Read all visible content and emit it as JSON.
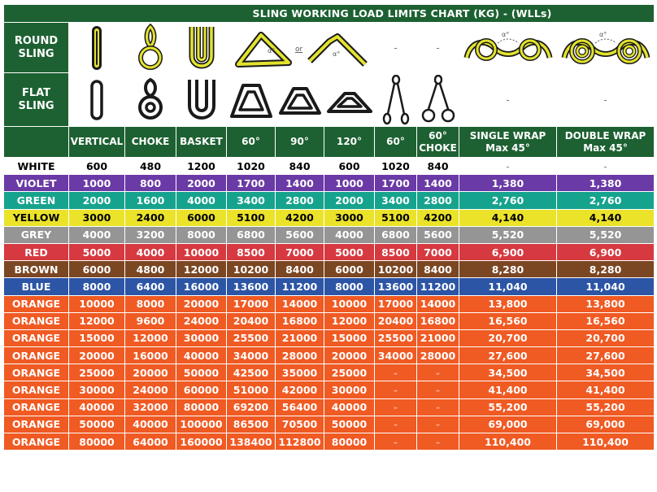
{
  "title": "SLING WORKING LOAD LIMITS CHART (KG) - (WLLs)",
  "round_label": "ROUND\nSLING",
  "flat_label": "FLAT\nSLING",
  "or_text": "or",
  "angle_symbol": "α°",
  "dash": "-",
  "columns": [
    "VERTICAL",
    "CHOKE",
    "BASKET",
    "60°",
    "90°",
    "120°",
    "60°",
    "60°\nCHOKE",
    "SINGLE WRAP\nMax 45°",
    "DOUBLE WRAP\nMax 45°"
  ],
  "colors": {
    "header_green": "#1d6132",
    "white": "#ffffff",
    "violet": "#6a3aa6",
    "green": "#16a38e",
    "yellow": "#ebe32a",
    "grey": "#959595",
    "red": "#d6393f",
    "brown": "#7b4723",
    "blue": "#2d55a5",
    "orange": "#f05a23",
    "sling_yellow": "#e3e32e"
  },
  "rows": [
    {
      "color": "WHITE",
      "bg": "#ffffff",
      "fg": "#000000",
      "values": [
        "600",
        "480",
        "1200",
        "1020",
        "840",
        "600",
        "1020",
        "840",
        "-",
        "-"
      ]
    },
    {
      "color": "VIOLET",
      "bg": "#6a3aa6",
      "fg": "#ffffff",
      "values": [
        "1000",
        "800",
        "2000",
        "1700",
        "1400",
        "1000",
        "1700",
        "1400",
        "1,380",
        "1,380"
      ]
    },
    {
      "color": "GREEN",
      "bg": "#16a38e",
      "fg": "#ffffff",
      "values": [
        "2000",
        "1600",
        "4000",
        "3400",
        "2800",
        "2000",
        "3400",
        "2800",
        "2,760",
        "2,760"
      ]
    },
    {
      "color": "YELLOW",
      "bg": "#ebe32a",
      "fg": "#000000",
      "values": [
        "3000",
        "2400",
        "6000",
        "5100",
        "4200",
        "3000",
        "5100",
        "4200",
        "4,140",
        "4,140"
      ]
    },
    {
      "color": "GREY",
      "bg": "#959595",
      "fg": "#ffffff",
      "values": [
        "4000",
        "3200",
        "8000",
        "6800",
        "5600",
        "4000",
        "6800",
        "5600",
        "5,520",
        "5,520"
      ]
    },
    {
      "color": "RED",
      "bg": "#d6393f",
      "fg": "#ffffff",
      "values": [
        "5000",
        "4000",
        "10000",
        "8500",
        "7000",
        "5000",
        "8500",
        "7000",
        "6,900",
        "6,900"
      ]
    },
    {
      "color": "BROWN",
      "bg": "#7b4723",
      "fg": "#ffffff",
      "values": [
        "6000",
        "4800",
        "12000",
        "10200",
        "8400",
        "6000",
        "10200",
        "8400",
        "8,280",
        "8,280"
      ]
    },
    {
      "color": "BLUE",
      "bg": "#2d55a5",
      "fg": "#ffffff",
      "values": [
        "8000",
        "6400",
        "16000",
        "13600",
        "11200",
        "8000",
        "13600",
        "11200",
        "11,040",
        "11,040"
      ]
    },
    {
      "color": "ORANGE",
      "bg": "#f05a23",
      "fg": "#ffffff",
      "values": [
        "10000",
        "8000",
        "20000",
        "17000",
        "14000",
        "10000",
        "17000",
        "14000",
        "13,800",
        "13,800"
      ]
    },
    {
      "color": "ORANGE",
      "bg": "#f05a23",
      "fg": "#ffffff",
      "values": [
        "12000",
        "9600",
        "24000",
        "20400",
        "16800",
        "12000",
        "20400",
        "16800",
        "16,560",
        "16,560"
      ]
    },
    {
      "color": "ORANGE",
      "bg": "#f05a23",
      "fg": "#ffffff",
      "values": [
        "15000",
        "12000",
        "30000",
        "25500",
        "21000",
        "15000",
        "25500",
        "21000",
        "20,700",
        "20,700"
      ]
    },
    {
      "color": "ORANGE",
      "bg": "#f05a23",
      "fg": "#ffffff",
      "values": [
        "20000",
        "16000",
        "40000",
        "34000",
        "28000",
        "20000",
        "34000",
        "28000",
        "27,600",
        "27,600"
      ]
    },
    {
      "color": "ORANGE",
      "bg": "#f05a23",
      "fg": "#ffffff",
      "values": [
        "25000",
        "20000",
        "50000",
        "42500",
        "35000",
        "25000",
        "-",
        "-",
        "34,500",
        "34,500"
      ]
    },
    {
      "color": "ORANGE",
      "bg": "#f05a23",
      "fg": "#ffffff",
      "values": [
        "30000",
        "24000",
        "60000",
        "51000",
        "42000",
        "30000",
        "-",
        "-",
        "41,400",
        "41,400"
      ]
    },
    {
      "color": "ORANGE",
      "bg": "#f05a23",
      "fg": "#ffffff",
      "values": [
        "40000",
        "32000",
        "80000",
        "69200",
        "56400",
        "40000",
        "-",
        "-",
        "55,200",
        "55,200"
      ]
    },
    {
      "color": "ORANGE",
      "bg": "#f05a23",
      "fg": "#ffffff",
      "values": [
        "50000",
        "40000",
        "100000",
        "86500",
        "70500",
        "50000",
        "-",
        "-",
        "69,000",
        "69,000"
      ]
    },
    {
      "color": "ORANGE",
      "bg": "#f05a23",
      "fg": "#ffffff",
      "values": [
        "80000",
        "64000",
        "160000",
        "138400",
        "112800",
        "80000",
        "-",
        "-",
        "110,400",
        "110,400"
      ]
    }
  ]
}
